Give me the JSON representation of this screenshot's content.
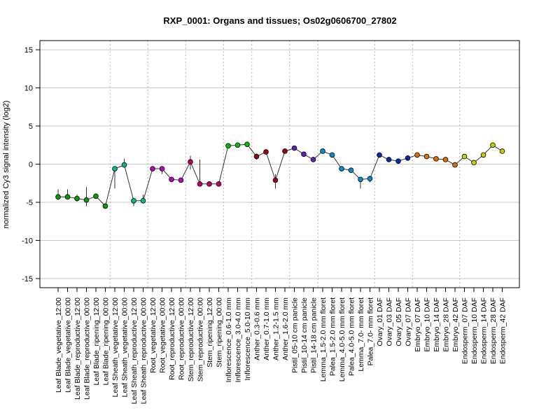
{
  "chart_data": {
    "type": "line",
    "title": "RXP_0001: Organs and tissues; Os02g0606700_27802",
    "xlabel": "",
    "ylabel": "normalized Cy3 signal intensity (log2)",
    "ylim": [
      -16.2,
      16.2
    ],
    "yticks": [
      -15,
      -10,
      -5,
      0,
      5,
      10,
      15
    ],
    "grid": true,
    "categories": [
      "Leaf Blade_vegetative_12:00",
      "Leaf Blade_vegetative_00:00",
      "Leaf Blade_reproductive_12:00",
      "Leaf Blade_reproductive_00:00",
      "Leaf Blade_ripening_12:00",
      "Leaf Blade_ripening_00:00",
      "Leaf Sheath_vegetative_12:00",
      "Leaf Sheath_vegetative_00:00",
      "Leaf Sheath_reproductive_12:00",
      "Leaf Sheath_reproductive_00:00",
      "Root_vegetative_12:00",
      "Root_vegetative_00:00",
      "Root_reproductive_12:00",
      "Root_reproductive_00:00",
      "Stem_reproductive_12:00",
      "Stem_reproductive_00:00",
      "Stem_ripening_12:00",
      "Stem_ripening_00:00",
      "Inflorescence_0.6-1.0 mm",
      "Inflorescence_3.0-4.0 mm",
      "Inflorescence_5.0-10 mm",
      "Anther_0.3-0.6 mm",
      "Anther_0.7-1.0 mm",
      "Anther_1.2-1.5 mm",
      "Anther_1.6-2.0 mm",
      "Pistil_05-10 cm panicle",
      "Pistil_10-14 cm panicle",
      "Pistil_14-18 cm panicle",
      "Lemma_1.5-2.0 mm floret",
      "Palea_1.5-2.0 mm floret",
      "Lemma_4.0-5.0 mm floret",
      "Palea_4.0-5.0 mm floret",
      "Lemma_7.0- mm floret",
      "Palea_7.0- mm floret",
      "Ovary_01 DAF",
      "Ovary_03 DAF",
      "Ovary_05 DAF",
      "Ovary_07 DAF",
      "Embryo_07 DAF",
      "Embryo_10 DAF",
      "Embryo_14 DAF",
      "Embryo_28 DAF",
      "Embryo_42 DAF",
      "Endosperm_07 DAF",
      "Endosperm_10 DAF",
      "Endosperm_14 DAF",
      "Endosperm_28 DAF",
      "Endosperm_42 DAF"
    ],
    "values": [
      -4.3,
      -4.3,
      -4.5,
      -4.7,
      -4.2,
      -5.5,
      -0.6,
      -0.1,
      -4.8,
      -4.8,
      -0.6,
      -0.6,
      -2.0,
      -2.1,
      0.3,
      -2.6,
      -2.6,
      -2.6,
      2.4,
      2.5,
      2.6,
      1.0,
      1.6,
      -2.1,
      1.7,
      2.1,
      1.3,
      0.6,
      1.7,
      1.2,
      -0.6,
      -0.8,
      -2.0,
      -1.9,
      1.2,
      0.6,
      0.4,
      0.8,
      1.2,
      1.0,
      0.7,
      0.6,
      -0.1,
      1.0,
      0.2,
      1.2,
      2.5,
      1.7
    ],
    "error_low": [
      -4.7,
      -4.5,
      -4.9,
      -5.5,
      -4.4,
      -5.7,
      -3.2,
      -0.4,
      -5.5,
      -5.1,
      -0.8,
      -1.3,
      -2.1,
      -2.3,
      -0.7,
      -2.8,
      -2.9,
      -2.9,
      2.2,
      2.3,
      2.4,
      0.6,
      1.3,
      -3.2,
      1.4,
      1.9,
      1.1,
      0.3,
      1.4,
      1.0,
      -0.8,
      -1.0,
      -3.2,
      -2.4,
      0.9,
      0.3,
      0.2,
      0.6,
      1.0,
      0.8,
      0.5,
      0.4,
      -0.3,
      0.8,
      0.0,
      1.0,
      2.2,
      1.5
    ],
    "error_high": [
      -3.3,
      -3.3,
      -4.0,
      -3.0,
      -4.0,
      -5.3,
      -0.3,
      0.7,
      -4.4,
      -4.0,
      -0.4,
      -0.4,
      -1.8,
      -1.9,
      1.1,
      0.6,
      -2.3,
      -2.4,
      2.6,
      2.7,
      2.8,
      1.4,
      2.0,
      -1.3,
      1.9,
      2.3,
      1.5,
      0.8,
      1.9,
      1.4,
      -0.4,
      -0.5,
      -1.8,
      -1.6,
      1.4,
      0.8,
      0.6,
      1.0,
      1.4,
      1.2,
      0.9,
      0.8,
      0.1,
      1.2,
      0.4,
      1.4,
      2.8,
      1.9
    ],
    "point_colors": [
      "#00a000",
      "#00a000",
      "#00a000",
      "#00a000",
      "#00a000",
      "#00a000",
      "#00c080",
      "#00c080",
      "#00c080",
      "#00c080",
      "#c000c0",
      "#c000c0",
      "#c000c0",
      "#c000c0",
      "#c00060",
      "#c00060",
      "#c00060",
      "#c00060",
      "#00c000",
      "#00c000",
      "#00c000",
      "#a00020",
      "#a00020",
      "#a00020",
      "#a00020",
      "#6020c0",
      "#6020c0",
      "#6020c0",
      "#0090d0",
      "#0090d0",
      "#0090d0",
      "#0090d0",
      "#0090d0",
      "#0090d0",
      "#0030b0",
      "#0030b0",
      "#0030b0",
      "#0030b0",
      "#e07000",
      "#e07000",
      "#e07000",
      "#e07000",
      "#e07000",
      "#c8d000",
      "#c8d000",
      "#c8d000",
      "#c8d000",
      "#c8d000"
    ],
    "group_separators_after": [
      5,
      9,
      13,
      17,
      20,
      24,
      27,
      33,
      37,
      42
    ]
  }
}
